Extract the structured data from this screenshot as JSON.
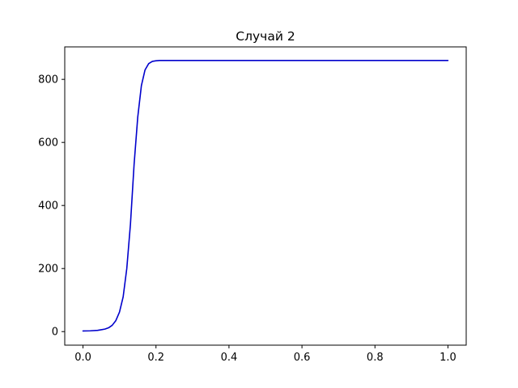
{
  "chart_data": {
    "type": "line",
    "title": "Случай 2",
    "xlabel": "",
    "ylabel": "",
    "xlim": [
      -0.05,
      1.05
    ],
    "ylim": [
      -43,
      903
    ],
    "x_ticks": [
      0.0,
      0.2,
      0.4,
      0.6,
      0.8,
      1.0
    ],
    "x_tick_labels": [
      "0.0",
      "0.2",
      "0.4",
      "0.6",
      "0.8",
      "1.0"
    ],
    "y_ticks": [
      0,
      200,
      400,
      600,
      800
    ],
    "y_tick_labels": [
      "0",
      "200",
      "400",
      "600",
      "800"
    ],
    "grid": false,
    "series": [
      {
        "name": "Случай 2",
        "color": "#0000cc",
        "x": [
          0.0,
          0.02,
          0.04,
          0.06,
          0.07,
          0.08,
          0.09,
          0.1,
          0.11,
          0.12,
          0.13,
          0.14,
          0.15,
          0.16,
          0.17,
          0.18,
          0.19,
          0.2,
          0.21,
          0.22,
          0.25,
          0.3,
          0.4,
          0.5,
          0.6,
          0.7,
          0.8,
          0.9,
          1.0
        ],
        "y": [
          2,
          2.5,
          4,
          8,
          12,
          20,
          35,
          62,
          110,
          200,
          340,
          530,
          680,
          780,
          830,
          850,
          857,
          859,
          860,
          860,
          860,
          860,
          860,
          860,
          860,
          860,
          860,
          860,
          860
        ]
      }
    ]
  }
}
